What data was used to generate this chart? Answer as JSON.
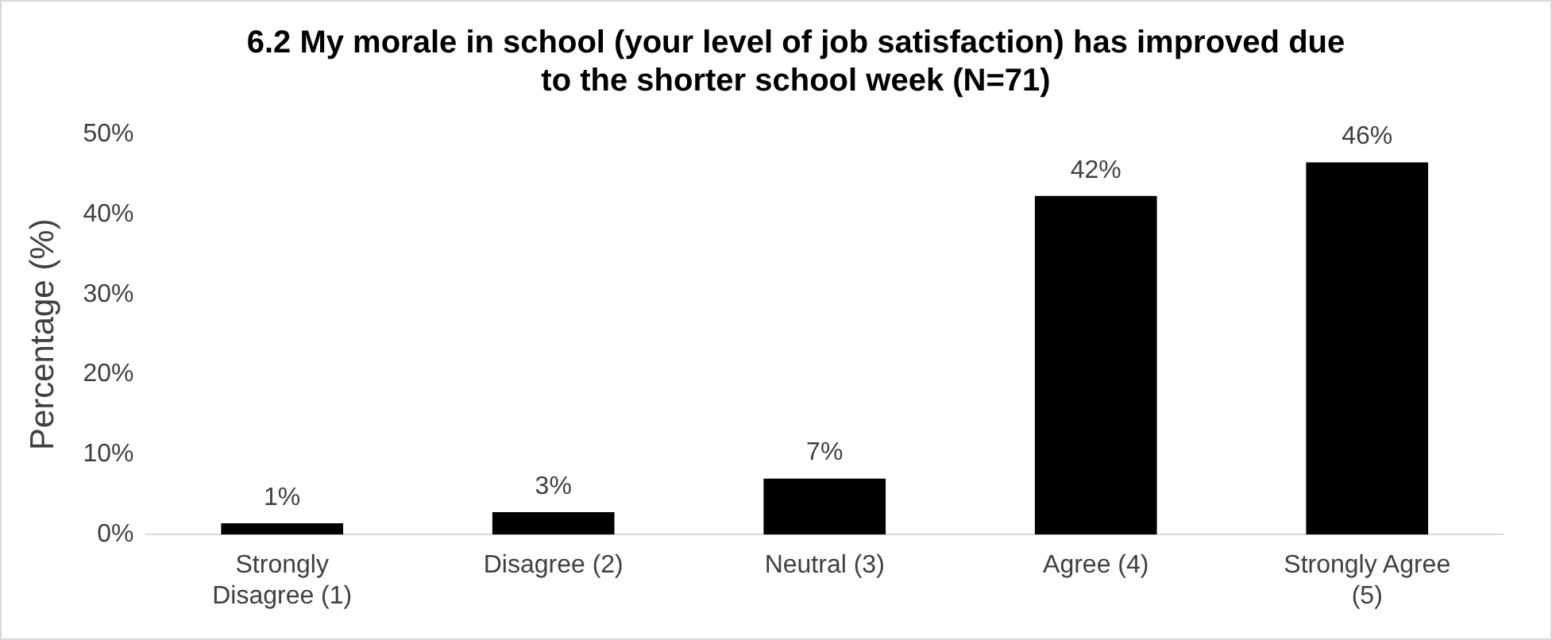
{
  "chart_data": {
    "type": "bar",
    "title": "6.2 My morale in school (your level of job satisfaction) has improved due to the shorter school week (N=71)",
    "ylabel": "Percentage (%)",
    "categories": [
      "Strongly Disagree (1)",
      "Disagree (2)",
      "Neutral (3)",
      "Agree (4)",
      "Strongly Agree (5)"
    ],
    "values": [
      1.4,
      2.8,
      7.0,
      42.3,
      46.5
    ],
    "value_labels": [
      "1%",
      "3%",
      "7%",
      "42%",
      "46%"
    ],
    "color": "#000000",
    "ylim": [
      0,
      50
    ],
    "yticks": [
      {
        "value": 0,
        "label": "0%"
      },
      {
        "value": 10,
        "label": "10%"
      },
      {
        "value": 20,
        "label": "20%"
      },
      {
        "value": 30,
        "label": "30%"
      },
      {
        "value": 40,
        "label": "40%"
      },
      {
        "value": 50,
        "label": "50%"
      }
    ],
    "grid": false
  }
}
